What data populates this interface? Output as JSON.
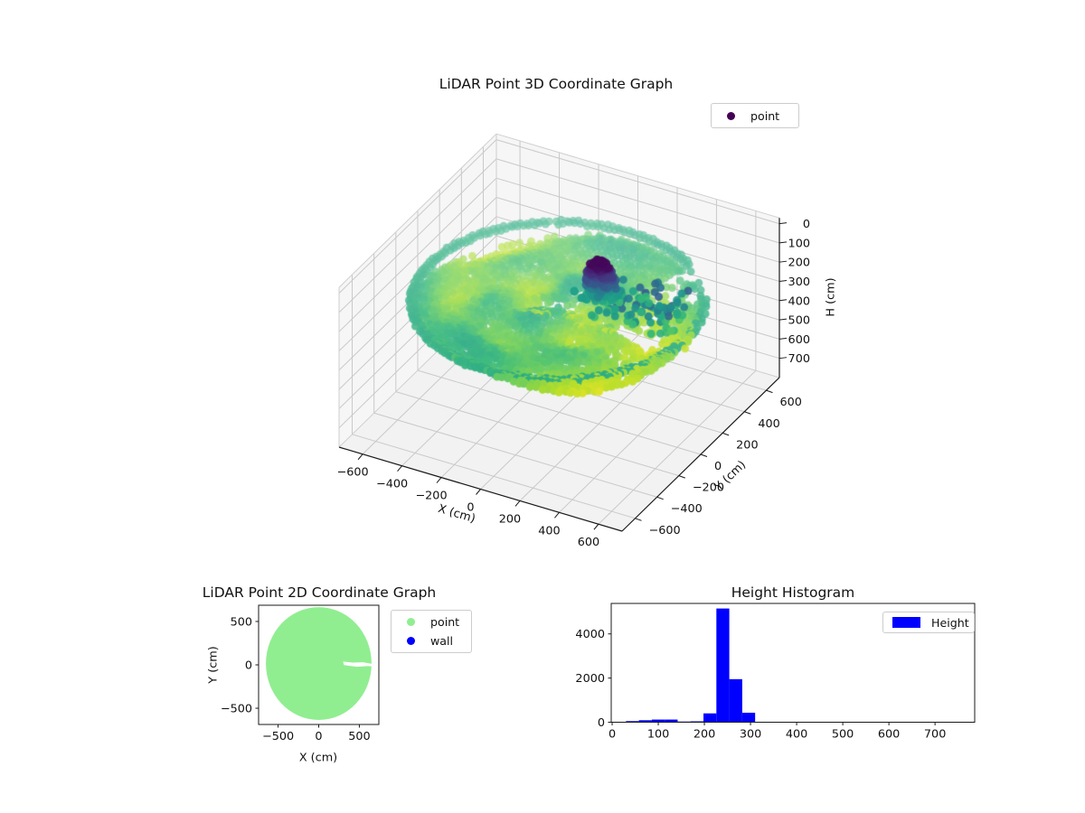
{
  "colors": {
    "viridis": [
      "#440154",
      "#482878",
      "#3e4a89",
      "#31688e",
      "#26828e",
      "#1f9e89",
      "#35b779",
      "#6ece58",
      "#b5de2b",
      "#fde725"
    ],
    "grid": "#c9c9c9",
    "pane": "#f6f6f6",
    "floor_pane": "#f2f2f2",
    "axis_line": "#1a1a1a",
    "point_2d": "#90ee90",
    "wall": "#0000ff",
    "hist_bar": "#0000ff",
    "legend_marker_3d": "#440154"
  },
  "chart_data": [
    {
      "type": "scatter",
      "projection": "3d",
      "title": "LiDAR Point 3D Coordinate Graph",
      "xlabel": "X (cm)",
      "ylabel": "Y (cm)",
      "zlabel": "H (cm)",
      "legend": [
        {
          "label": "point",
          "marker": "dot",
          "color": "#440154"
        }
      ],
      "xticks": [
        -600,
        -400,
        -200,
        0,
        200,
        400,
        600
      ],
      "yticks": [
        -600,
        -400,
        -200,
        0,
        200,
        400,
        600
      ],
      "zticks": [
        0,
        100,
        200,
        300,
        400,
        500,
        600,
        700
      ],
      "xlim": [
        -720,
        720
      ],
      "ylim": [
        -720,
        720
      ],
      "zlim": [
        -30,
        800
      ],
      "z_axis_inverted": true,
      "colormap": "viridis mapped to H over range 30-330 cm",
      "point_cloud": {
        "disc": {
          "center_x": 0,
          "center_y": -10,
          "r_max": 660,
          "r_min": 40,
          "ring_step": 21,
          "point_spacing": 26,
          "h_base": 256,
          "h_swirl_amp": 34,
          "h_ripple_amp": 12,
          "h_right_boost": 30,
          "h_noise": 14,
          "rim_h": 212,
          "rim_r": 620,
          "h_min": 205,
          "h_max": 322,
          "color_h_range": [
            30,
            330
          ]
        },
        "cluster": {
          "center_x": 150,
          "center_y": 100,
          "spread_x": 105,
          "spread_y": 80,
          "h_min": 35,
          "h_max": 215,
          "count": 270
        },
        "trail": {
          "x_min": 180,
          "x_max": 560,
          "y_min": -50,
          "y_max": 270,
          "h_min": 120,
          "h_max": 250,
          "count": 130
        },
        "gaps": {
          "sliver_half_angle": 0.05,
          "sliver_r_min": 290,
          "sliver_wide_half_angle": 0.11,
          "sliver_wide_r": [
            300,
            490
          ],
          "notch_angle": [
            0.52,
            0.95
          ],
          "notch_r_min": 380,
          "notch_keep": 0.25,
          "patch1_angle": [
            -0.55,
            -0.18
          ],
          "patch1_r": [
            400,
            580
          ],
          "patch1_dropout": 0.5,
          "patch2_angle": [
            0.1,
            0.5
          ],
          "patch2_r": [
            300,
            560
          ],
          "patch2_dropout": 0.35,
          "inner_arc_angle": [
            1.5,
            2.9
          ],
          "inner_arc_r": [
            582,
            618
          ],
          "random_dropout": 0.04
        }
      }
    },
    {
      "type": "scatter",
      "projection": "2d",
      "title": "LiDAR Point 2D Coordinate Graph",
      "xlabel": "X (cm)",
      "ylabel": "Y (cm)",
      "legend": [
        {
          "label": "point",
          "marker": "dot",
          "color": "#90ee90"
        },
        {
          "label": "wall",
          "marker": "dot",
          "color": "#0000ff"
        }
      ],
      "xticks": [
        -500,
        0,
        500
      ],
      "yticks": [
        -500,
        0,
        500
      ],
      "xlim": [
        -740,
        740
      ],
      "ylim": [
        -687,
        687
      ],
      "disc": {
        "center_x": 0,
        "center_y": 15,
        "radius": 650,
        "color": "#90ee90"
      },
      "gaps": {
        "notch": [
          [
            360,
            687
          ],
          [
            400,
            640
          ],
          [
            470,
            540
          ],
          [
            560,
            478
          ],
          [
            660,
            445
          ],
          [
            740,
            440
          ],
          [
            740,
            687
          ]
        ],
        "sliver": [
          [
            300,
            38
          ],
          [
            420,
            26
          ],
          [
            545,
            30
          ],
          [
            680,
            8
          ],
          [
            740,
            10
          ],
          [
            740,
            -20
          ],
          [
            600,
            -14
          ],
          [
            470,
            -22
          ],
          [
            380,
            -12
          ],
          [
            310,
            -2
          ]
        ]
      }
    },
    {
      "type": "histogram",
      "title": "Height Histogram",
      "legend": [
        {
          "label": "Height",
          "marker": "patch",
          "color": "#0000ff"
        }
      ],
      "xticks": [
        0,
        100,
        200,
        300,
        400,
        500,
        600,
        700
      ],
      "yticks": [
        0,
        2000,
        4000
      ],
      "xlim": [
        -2,
        786
      ],
      "ylim": [
        0,
        5380
      ],
      "bin_start": 30,
      "bin_width": 28,
      "counts": [
        50,
        90,
        120,
        120,
        30,
        40,
        400,
        5150,
        1950,
        430
      ]
    }
  ]
}
